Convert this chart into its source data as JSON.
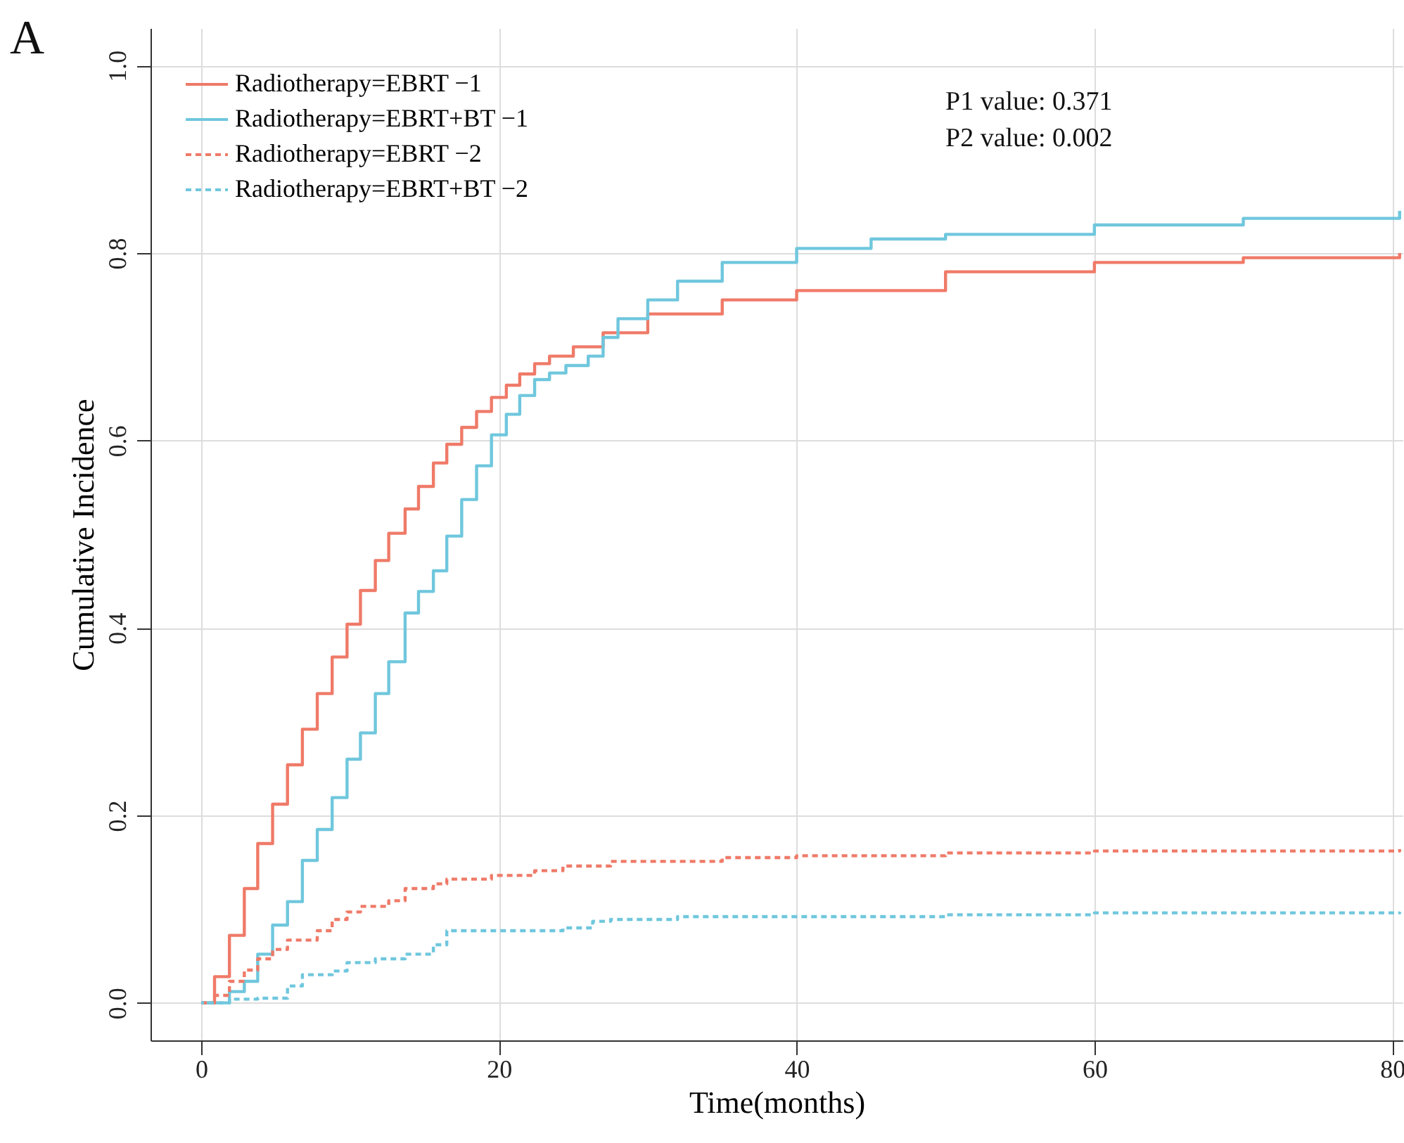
{
  "chart_data": {
    "type": "step",
    "xlabel": "Time(months)",
    "ylabel": "Cumulative Incidence",
    "annotations": [
      "A",
      "P1 value: 0.371",
      "P2 value: 0.002"
    ],
    "xlim": [
      -3.4,
      80.7
    ],
    "ylim": [
      -0.04,
      1.04
    ],
    "xticks": [
      0,
      20,
      40,
      60,
      80
    ],
    "yticks": [
      {
        "value": 0,
        "label": "0.0"
      },
      0.2,
      0.4,
      0.6,
      0.8,
      {
        "value": 1,
        "label": "1.0"
      }
    ],
    "grid": true,
    "legend": "top left",
    "series": [
      {
        "name": "Radiotherapy=EBRT −1",
        "color": "#ef7a68",
        "line_style": "solid",
        "x": [
          0,
          0.9,
          1.9,
          2.9,
          3.8,
          4.8,
          5.8,
          6.8,
          7.8,
          8.8,
          9.8,
          10.7,
          11.7,
          12.6,
          13.7,
          14.6,
          15.6,
          16.5,
          17.5,
          18.5,
          19.5,
          20.5,
          21.4,
          22.4,
          23.4,
          25,
          27,
          30,
          35,
          40,
          50,
          60,
          70,
          80.5
        ],
        "values": [
          0,
          0.028,
          0.072,
          0.122,
          0.17,
          0.212,
          0.254,
          0.292,
          0.33,
          0.369,
          0.404,
          0.44,
          0.472,
          0.501,
          0.527,
          0.551,
          0.576,
          0.596,
          0.614,
          0.631,
          0.646,
          0.659,
          0.671,
          0.682,
          0.69,
          0.7,
          0.715,
          0.735,
          0.75,
          0.76,
          0.78,
          0.79,
          0.795,
          0.8
        ]
      },
      {
        "name": "Radiotherapy=EBRT+BT −1",
        "color": "#6fc7dd",
        "line_style": "solid",
        "x": [
          0,
          1.9,
          2.9,
          3.8,
          4.8,
          5.8,
          6.8,
          7.8,
          8.8,
          9.8,
          10.7,
          11.7,
          12.6,
          13.7,
          14.6,
          15.6,
          16.5,
          17.5,
          18.5,
          19.5,
          20.5,
          21.4,
          22.4,
          23.4,
          24.5,
          26,
          27,
          28,
          30,
          32,
          35,
          40,
          45,
          50,
          60,
          70,
          80.5
        ],
        "values": [
          0,
          0.012,
          0.023,
          0.052,
          0.083,
          0.108,
          0.152,
          0.185,
          0.219,
          0.26,
          0.288,
          0.33,
          0.364,
          0.416,
          0.439,
          0.461,
          0.498,
          0.537,
          0.573,
          0.606,
          0.628,
          0.648,
          0.665,
          0.672,
          0.68,
          0.69,
          0.71,
          0.73,
          0.75,
          0.77,
          0.79,
          0.805,
          0.815,
          0.82,
          0.83,
          0.837,
          0.845
        ]
      },
      {
        "name": "Radiotherapy=EBRT −2",
        "color": "#ef7a68",
        "line_style": "dashed",
        "x": [
          0,
          0.9,
          1.9,
          2.9,
          3.8,
          4.8,
          5.8,
          7.8,
          8.8,
          9.8,
          10.7,
          12.6,
          13.7,
          15.6,
          16.5,
          19.5,
          22.4,
          24.3,
          27.5,
          35,
          40,
          50,
          60,
          80.5
        ],
        "values": [
          0,
          0.008,
          0.023,
          0.035,
          0.047,
          0.057,
          0.067,
          0.077,
          0.089,
          0.097,
          0.103,
          0.109,
          0.122,
          0.127,
          0.132,
          0.136,
          0.141,
          0.146,
          0.151,
          0.155,
          0.157,
          0.16,
          0.162,
          0.164
        ]
      },
      {
        "name": "Radiotherapy=EBRT+BT −2",
        "color": "#6fc7dd",
        "line_style": "dashed",
        "x": [
          0,
          1.9,
          3.8,
          5.8,
          6.8,
          8.8,
          9.8,
          11.7,
          13.7,
          15.6,
          16.5,
          24.3,
          26.3,
          27.5,
          32,
          50,
          60,
          80.5
        ],
        "values": [
          0,
          0.004,
          0.005,
          0.018,
          0.03,
          0.034,
          0.043,
          0.047,
          0.052,
          0.062,
          0.077,
          0.08,
          0.087,
          0.089,
          0.092,
          0.094,
          0.096,
          0.097
        ]
      }
    ]
  }
}
